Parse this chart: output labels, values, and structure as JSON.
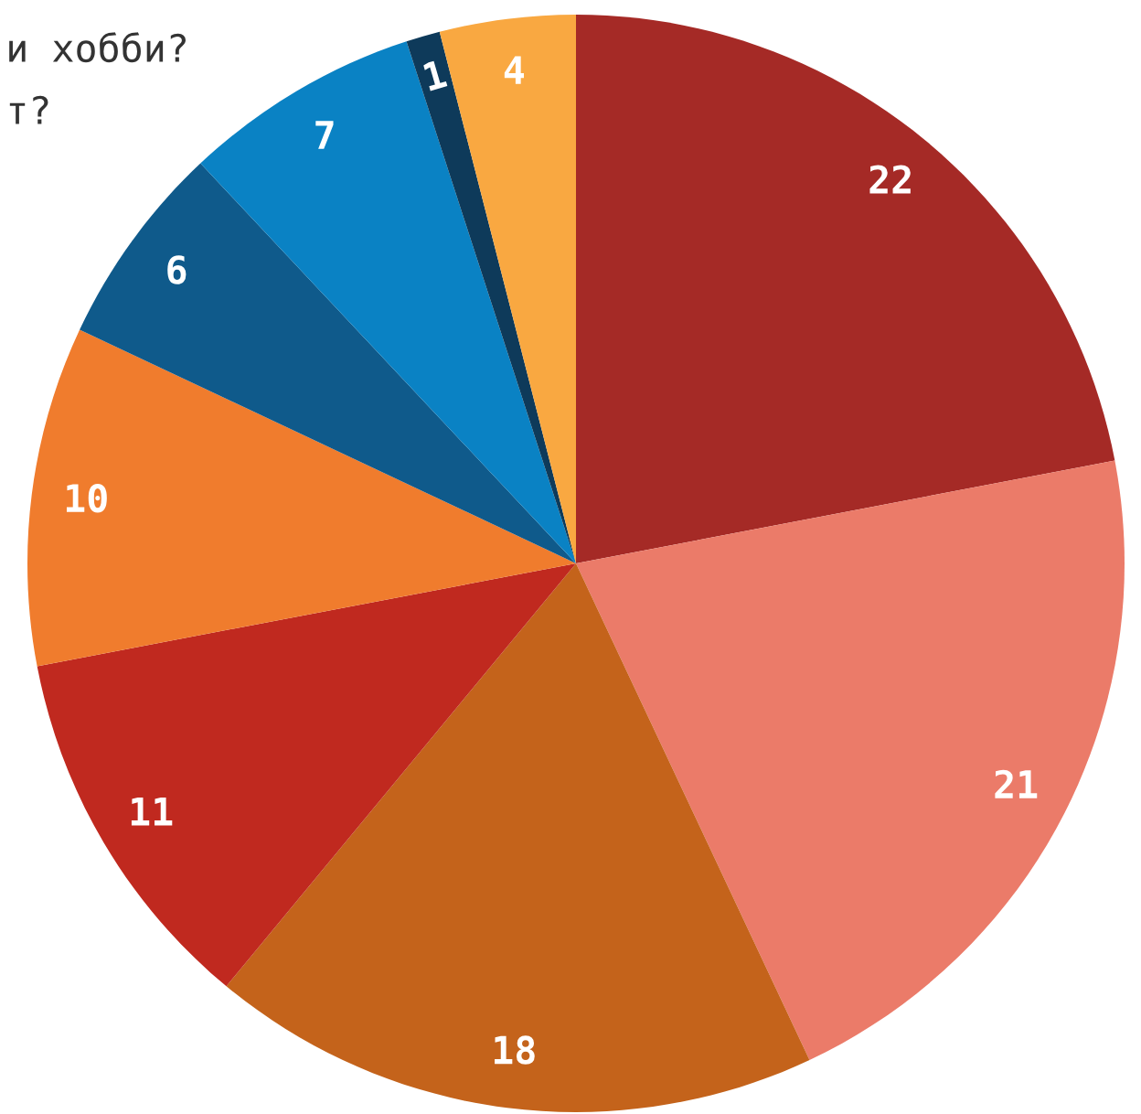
{
  "chart_data": {
    "type": "pie",
    "categories": [
      null,
      null,
      null,
      null,
      null,
      null,
      null,
      null,
      null
    ],
    "values": [
      22,
      21,
      18,
      11,
      10,
      6,
      7,
      1,
      4
    ],
    "colors": [
      "#a52a26",
      "#eb7b69",
      "#c4631b",
      "#c0291f",
      "#f07c2d",
      "#0f5a8b",
      "#0a82c4",
      "#0e3a5a",
      "#f9a841"
    ],
    "data_labels": true,
    "annotations": [
      "и хобби?",
      "т?"
    ]
  }
}
